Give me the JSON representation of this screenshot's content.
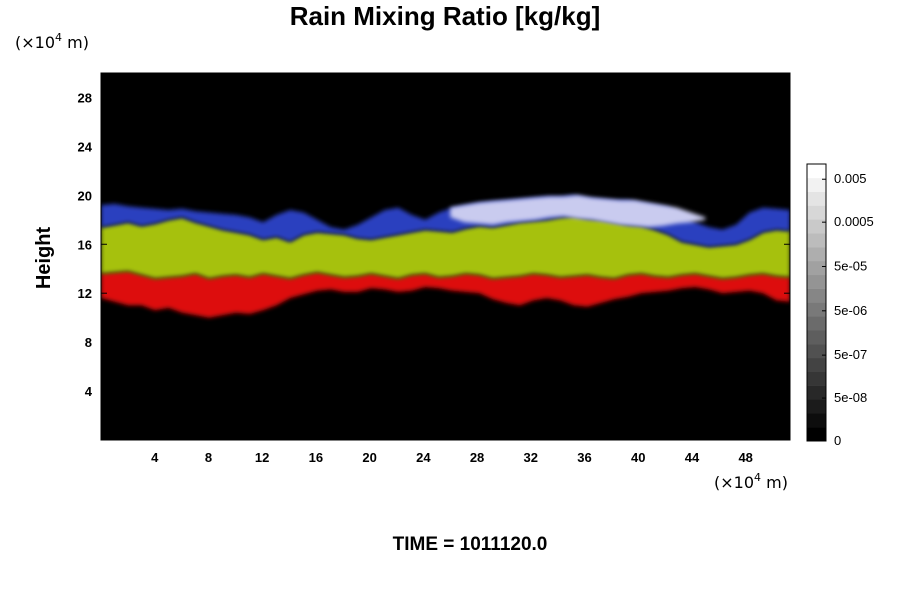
{
  "chart_data": {
    "type": "heatmap",
    "title": "Rain Mixing Ratio [kg/kg]",
    "ylabel": "Height",
    "xlabel": "",
    "x_unit_prefix": "(×10",
    "x_unit_exp": "4",
    "x_unit_suffix": " m)",
    "y_unit_prefix": "(×10",
    "y_unit_exp": "4",
    "y_unit_suffix": " m)",
    "xlim": [
      0,
      51.3
    ],
    "ylim": [
      0,
      30
    ],
    "x_ticks": [
      4,
      8,
      12,
      16,
      20,
      24,
      28,
      32,
      36,
      40,
      44,
      48
    ],
    "y_ticks": [
      4,
      8,
      12,
      16,
      20,
      24,
      28
    ],
    "background_color": "#000000",
    "colorbar": {
      "labels": [
        "0.005",
        "0.0005",
        "5e-05",
        "5e-06",
        "5e-07",
        "5e-08",
        "0"
      ],
      "values": [
        0.005,
        0.0005,
        5e-05,
        5e-06,
        5e-07,
        5e-08,
        0
      ],
      "steps": 20,
      "colors": [
        "#000000",
        "#ffffff"
      ]
    },
    "layers": [
      {
        "color": "#dd0a0a",
        "top": [
          13.6,
          13.7,
          13.8,
          13.5,
          13.2,
          13.3,
          13.4,
          13.6,
          13.2,
          13.4,
          13.5,
          13.3,
          13.6,
          13.4,
          13.2,
          13.5,
          13.7,
          13.5,
          13.3,
          13.4,
          13.6,
          13.4,
          13.2,
          13.5,
          13.6,
          13.3,
          13.4,
          13.6,
          13.5,
          13.2,
          13.3,
          13.4,
          13.6,
          13.5,
          13.3,
          13.4,
          13.5,
          13.3,
          13.2,
          13.5,
          13.6,
          13.4,
          13.3,
          13.5,
          13.6,
          13.4,
          13.2,
          13.3,
          13.5,
          13.6,
          13.4,
          13.3
        ],
        "bottom": [
          11.6,
          11.3,
          11.0,
          11.0,
          10.6,
          10.8,
          10.4,
          10.2,
          10.0,
          10.2,
          10.4,
          10.3,
          10.6,
          11.0,
          11.6,
          11.9,
          12.2,
          12.3,
          12.1,
          12.1,
          12.4,
          12.3,
          12.1,
          12.2,
          12.5,
          12.4,
          12.2,
          12.1,
          12.0,
          11.5,
          11.2,
          11.0,
          11.4,
          11.6,
          11.4,
          11.0,
          10.9,
          11.2,
          11.5,
          11.7,
          12.0,
          12.1,
          12.2,
          12.4,
          12.5,
          12.3,
          12.0,
          12.1,
          12.2,
          12.0,
          11.4,
          11.3
        ]
      },
      {
        "color": "#a6c10d",
        "top": [
          17.4,
          17.6,
          17.8,
          17.5,
          17.7,
          18.0,
          18.2,
          17.8,
          17.5,
          17.2,
          17.0,
          16.8,
          16.4,
          16.6,
          16.2,
          16.8,
          17.0,
          16.9,
          16.8,
          16.5,
          16.4,
          16.6,
          16.8,
          17.0,
          17.2,
          17.1,
          17.0,
          17.3,
          17.5,
          17.4,
          17.6,
          17.8,
          17.9,
          18.0,
          18.2,
          18.3,
          18.1,
          18.0,
          17.8,
          17.6,
          17.5,
          17.2,
          16.8,
          16.2,
          16.0,
          15.8,
          15.9,
          16.0,
          16.4,
          17.0,
          17.2,
          17.1
        ],
        "bottom": [
          13.6,
          13.7,
          13.8,
          13.5,
          13.2,
          13.3,
          13.4,
          13.6,
          13.2,
          13.4,
          13.5,
          13.3,
          13.6,
          13.4,
          13.2,
          13.5,
          13.7,
          13.5,
          13.3,
          13.4,
          13.6,
          13.4,
          13.2,
          13.5,
          13.6,
          13.3,
          13.4,
          13.6,
          13.5,
          13.2,
          13.3,
          13.4,
          13.6,
          13.5,
          13.3,
          13.4,
          13.5,
          13.3,
          13.2,
          13.5,
          13.6,
          13.4,
          13.3,
          13.5,
          13.6,
          13.4,
          13.2,
          13.3,
          13.5,
          13.6,
          13.4,
          13.3
        ]
      },
      {
        "color": "#2b3fbf",
        "top": [
          19.2,
          19.3,
          19.1,
          19.0,
          18.9,
          18.8,
          18.9,
          18.7,
          18.6,
          18.5,
          18.4,
          18.2,
          17.8,
          18.4,
          18.8,
          18.6,
          18.0,
          17.4,
          17.2,
          17.6,
          18.2,
          18.8,
          19.0,
          18.4,
          18.0,
          18.6,
          19.0,
          19.2,
          19.4,
          19.5,
          19.6,
          19.7,
          19.8,
          19.9,
          19.9,
          20.0,
          19.8,
          19.7,
          19.6,
          19.6,
          19.4,
          19.2,
          19.0,
          18.4,
          17.8,
          17.4,
          17.2,
          17.6,
          18.6,
          19.0,
          18.9,
          18.8
        ],
        "bottom": [
          17.4,
          17.6,
          17.8,
          17.5,
          17.7,
          18.0,
          18.2,
          17.8,
          17.5,
          17.2,
          17.0,
          16.8,
          16.4,
          16.6,
          16.2,
          16.8,
          17.0,
          16.9,
          16.8,
          16.5,
          16.4,
          16.6,
          16.8,
          17.0,
          17.2,
          17.1,
          17.0,
          17.3,
          17.5,
          17.4,
          17.6,
          17.8,
          17.9,
          18.0,
          18.2,
          18.3,
          18.1,
          18.0,
          17.8,
          17.6,
          17.5,
          17.2,
          16.8,
          16.2,
          16.0,
          15.8,
          15.9,
          16.0,
          16.4,
          17.0,
          17.2,
          17.1
        ]
      },
      {
        "color": "#c9cbef",
        "x_range": [
          26,
          45
        ],
        "top": [
          19.0,
          19.2,
          19.4,
          19.5,
          19.6,
          19.7,
          19.8,
          19.9,
          19.9,
          20.0,
          19.8,
          19.7,
          19.6,
          19.6,
          19.4,
          19.2,
          19.0,
          18.6,
          18.2
        ],
        "bottom": [
          18.2,
          17.8,
          17.7,
          17.6,
          17.8,
          17.9,
          18.0,
          18.2,
          18.3,
          18.1,
          18.0,
          17.8,
          17.6,
          17.5,
          17.4,
          17.5,
          17.7,
          17.8,
          18.0
        ]
      }
    ]
  },
  "time_label": "TIME = 1011120.0"
}
